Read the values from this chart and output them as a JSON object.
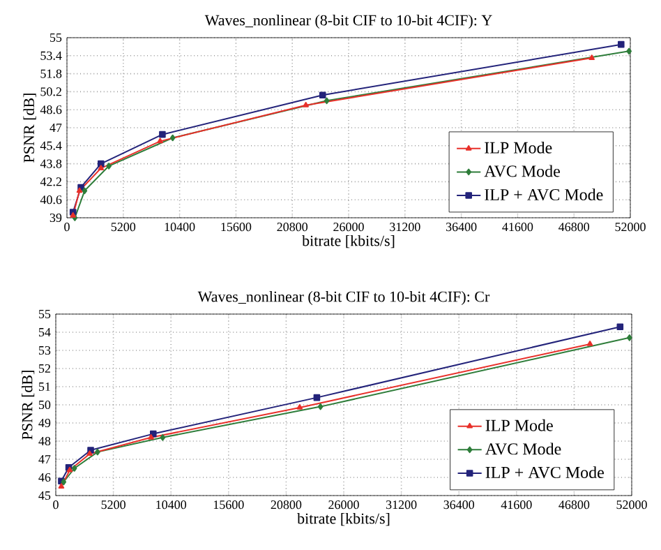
{
  "chart_data": [
    {
      "type": "line",
      "title": "Waves_nonlinear (8-bit CIF to 10-bit 4CIF): Y",
      "xlabel": "bitrate [kbits/s]",
      "ylabel": "PSNR [dB]",
      "xlim": [
        0,
        52000
      ],
      "ylim": [
        39,
        55
      ],
      "xticks": [
        0,
        5200,
        10400,
        15600,
        20800,
        26000,
        31200,
        36400,
        41600,
        46800,
        52000
      ],
      "yticks": [
        39,
        40.6,
        42.2,
        43.8,
        45.4,
        47,
        48.6,
        50.2,
        51.8,
        53.4,
        55
      ],
      "grid": true,
      "legend": "bottom right",
      "line_style": "solid",
      "series": [
        {
          "name": "ILP Mode",
          "color": "#e8302a",
          "marker": "triangle",
          "x": [
            560,
            1160,
            3140,
            8600,
            22050,
            48440
          ],
          "values": [
            39.2,
            41.4,
            43.4,
            45.8,
            49.0,
            53.2
          ]
        },
        {
          "name": "AVC Mode",
          "color": "#2e7d3a",
          "marker": "diamond",
          "x": [
            730,
            1630,
            3870,
            9760,
            23980,
            51880
          ],
          "values": [
            39.0,
            41.4,
            43.6,
            46.1,
            49.4,
            53.8
          ]
        },
        {
          "name": "ILP + AVC Mode",
          "color": "#23237a",
          "marker": "square",
          "x": [
            560,
            1290,
            3140,
            8810,
            23600,
            51150
          ],
          "values": [
            39.5,
            41.7,
            43.8,
            46.4,
            49.9,
            54.4
          ]
        }
      ]
    },
    {
      "type": "line",
      "title": "Waves_nonlinear (8-bit CIF to 10-bit 4CIF): Cr",
      "xlabel": "bitrate [kbits/s]",
      "ylabel": "PSNR [dB]",
      "xlim": [
        0,
        52000
      ],
      "ylim": [
        45,
        55
      ],
      "xticks": [
        0,
        5200,
        10400,
        15600,
        20800,
        26000,
        31200,
        36400,
        41600,
        46800,
        52000
      ],
      "yticks": [
        45,
        46,
        47,
        48,
        49,
        50,
        51,
        52,
        53,
        54,
        55
      ],
      "grid": true,
      "legend": "bottom right",
      "line_style": "solid",
      "series": [
        {
          "name": "ILP Mode",
          "color": "#e8302a",
          "marker": "triangle",
          "x": [
            500,
            1260,
            3060,
            8600,
            22020,
            48230
          ],
          "values": [
            45.5,
            46.4,
            47.3,
            48.2,
            49.85,
            53.35
          ]
        },
        {
          "name": "AVC Mode",
          "color": "#2e7d3a",
          "marker": "diamond",
          "x": [
            710,
            1680,
            3770,
            9650,
            23900,
            51800
          ],
          "values": [
            45.75,
            46.5,
            47.4,
            48.2,
            49.9,
            53.7
          ]
        },
        {
          "name": "ILP + AVC Mode",
          "color": "#23237a",
          "marker": "square",
          "x": [
            500,
            1170,
            3150,
            8800,
            23570,
            50950
          ],
          "values": [
            45.8,
            46.55,
            47.5,
            48.4,
            50.4,
            54.3
          ]
        }
      ]
    }
  ]
}
